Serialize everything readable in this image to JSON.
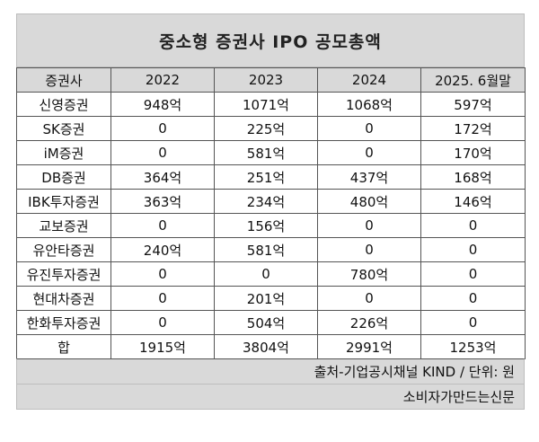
{
  "title": "중소형 증권사 IPO 공모총액",
  "headers": [
    "증권사",
    "2022",
    "2023",
    "2024",
    "2025. 6월말"
  ],
  "rows": [
    [
      "신영증권",
      "948억",
      "1071억",
      "1068억",
      "597억"
    ],
    [
      "SK증권",
      "0",
      "225억",
      "0",
      "172억"
    ],
    [
      "iM증권",
      "0",
      "581억",
      "0",
      "170억"
    ],
    [
      "DB증권",
      "364억",
      "251억",
      "437억",
      "168억"
    ],
    [
      "IBK투자증권",
      "363억",
      "234억",
      "480억",
      "146억"
    ],
    [
      "교보증권",
      "0",
      "156억",
      "0",
      "0"
    ],
    [
      "유안타증권",
      "240억",
      "581억",
      "0",
      "0"
    ],
    [
      "유진투자증권",
      "0",
      "0",
      "780억",
      "0"
    ],
    [
      "현대차증권",
      "0",
      "201억",
      "0",
      "0"
    ],
    [
      "한화투자증권",
      "0",
      "504억",
      "226억",
      "0"
    ],
    [
      "합",
      "1915억",
      "3804억",
      "2991억",
      "1253억"
    ]
  ],
  "source": "출처-기업공시채널 KIND / 단위: 원",
  "publisher": "소비자가만드는신문"
}
